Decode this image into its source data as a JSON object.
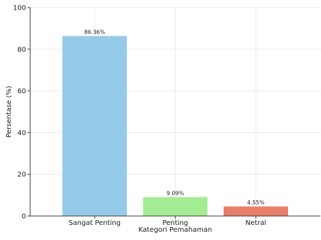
{
  "chart_data": {
    "type": "bar",
    "title": "",
    "xlabel": "Kategori Pemahaman",
    "ylabel": "Persentase (%)",
    "categories": [
      "Sangat Penting",
      "Penting",
      "Netral"
    ],
    "values": [
      86.36,
      9.09,
      4.55
    ],
    "data_labels": [
      "86.36%",
      "9.09%",
      "4.55%"
    ],
    "colors": [
      "#95cbe9",
      "#a4ec93",
      "#e87d6a"
    ],
    "ylim": [
      0,
      100
    ],
    "yticks": [
      0,
      20,
      40,
      60,
      80,
      100
    ],
    "grid": true,
    "legend": "none"
  }
}
